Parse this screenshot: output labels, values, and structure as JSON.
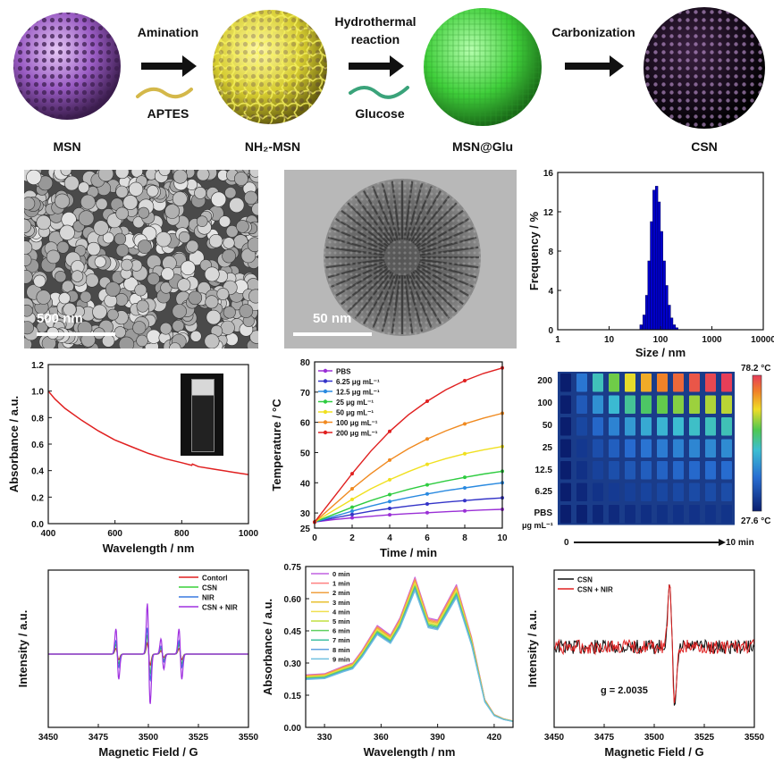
{
  "scheme": {
    "spheres": [
      {
        "label": "MSN",
        "color": "#b07ad6"
      },
      {
        "label": "NH₂-MSN",
        "color": "#e8e04a"
      },
      {
        "label": "MSN@Glu",
        "color": "#4fd14a"
      },
      {
        "label": "CSN",
        "color": "#1a0f1e"
      }
    ],
    "steps": [
      {
        "label": "Amination",
        "reagent": "APTES",
        "reagent_color": "#d4b84a"
      },
      {
        "label": "Hydrothermal reaction",
        "label_line1": "Hydrothermal",
        "label_line2": "reaction",
        "reagent": "Glucose",
        "reagent_color": "#3aa37a"
      },
      {
        "label": "Carbonization"
      }
    ]
  },
  "micrographs": {
    "sem": {
      "scale_label": "500 nm"
    },
    "tem": {
      "scale_label": "50 nm"
    }
  },
  "thermal_image": {
    "max_label": "78.2 °C",
    "min_label": "27.6 °C",
    "rows": [
      "200",
      "100",
      "50",
      "25",
      "12.5",
      "6.25",
      "PBS"
    ],
    "unit_label": "μg mL⁻¹",
    "time_start": "0",
    "time_end": "10 min"
  },
  "chart_data": [
    {
      "type": "bar",
      "xlabel": "Size / nm",
      "ylabel": "Frequency / %",
      "xscale": "log",
      "xlim": [
        1,
        10000
      ],
      "ylim": [
        0,
        16
      ],
      "xticks": [
        "1",
        "10",
        "100",
        "1000",
        "10000"
      ],
      "yticks": [
        "0",
        "4",
        "8",
        "12",
        "16"
      ],
      "color": "#0000cc",
      "x": [
        42,
        48,
        54,
        60,
        67,
        75,
        84,
        94,
        105,
        118,
        132,
        148,
        165,
        185,
        207
      ],
      "values": [
        0.5,
        1.5,
        3.5,
        7.0,
        11.0,
        14.2,
        14.6,
        13.0,
        10.0,
        7.0,
        4.5,
        2.5,
        1.2,
        0.5,
        0.2
      ]
    },
    {
      "type": "line",
      "xlabel": "Wavelength / nm",
      "ylabel": "Absorbance / a.u.",
      "xlim": [
        400,
        1000
      ],
      "ylim": [
        0.0,
        1.2
      ],
      "xticks": [
        "400",
        "600",
        "800",
        "1000"
      ],
      "yticks": [
        "0.0",
        "0.2",
        "0.4",
        "0.6",
        "0.8",
        "1.0",
        "1.2"
      ],
      "series": [
        {
          "color": "#e02020",
          "x": [
            400,
            420,
            450,
            500,
            550,
            600,
            650,
            700,
            750,
            800,
            830,
            832,
            850,
            900,
            950,
            1000
          ],
          "y": [
            1.0,
            0.94,
            0.87,
            0.78,
            0.7,
            0.63,
            0.58,
            0.53,
            0.49,
            0.46,
            0.44,
            0.45,
            0.43,
            0.41,
            0.39,
            0.37
          ]
        }
      ]
    },
    {
      "type": "line",
      "xlabel": "Time / min",
      "ylabel": "Temperature / °C",
      "xlim": [
        0,
        10
      ],
      "ylim": [
        25,
        80
      ],
      "xticks": [
        "0",
        "2",
        "4",
        "6",
        "8",
        "10"
      ],
      "yticks": [
        "25",
        "30",
        "40",
        "50",
        "60",
        "70",
        "80"
      ],
      "series": [
        {
          "name": "PBS",
          "color": "#9a2fd6",
          "marker": "square",
          "x": [
            0,
            1,
            2,
            3,
            4,
            5,
            6,
            7,
            8,
            9,
            10
          ],
          "y": [
            27,
            27.8,
            28.4,
            28.9,
            29.4,
            29.8,
            30.1,
            30.4,
            30.7,
            31.0,
            31.2
          ]
        },
        {
          "name": "6.25 μg mL⁻¹",
          "color": "#3434c8",
          "marker": "circle",
          "x": [
            0,
            1,
            2,
            3,
            4,
            5,
            6,
            7,
            8,
            9,
            10
          ],
          "y": [
            27,
            28.3,
            29.5,
            30.6,
            31.5,
            32.3,
            33.0,
            33.6,
            34.1,
            34.6,
            35.0
          ]
        },
        {
          "name": "12.5 μg mL⁻¹",
          "color": "#2a8ae0",
          "marker": "triangle",
          "x": [
            0,
            1,
            2,
            3,
            4,
            5,
            6,
            7,
            8,
            9,
            10
          ],
          "y": [
            27,
            28.8,
            30.6,
            32.3,
            33.8,
            35.1,
            36.3,
            37.4,
            38.3,
            39.2,
            40.0
          ]
        },
        {
          "name": "25 μg mL⁻¹",
          "color": "#2ecc40",
          "marker": "diamond",
          "x": [
            0,
            1,
            2,
            3,
            4,
            5,
            6,
            7,
            8,
            9,
            10
          ],
          "y": [
            27,
            29.5,
            31.9,
            34.1,
            36.1,
            37.8,
            39.3,
            40.6,
            41.8,
            42.9,
            43.8
          ]
        },
        {
          "name": "50 μg mL⁻¹",
          "color": "#f0e020",
          "marker": "triangle-left",
          "x": [
            0,
            1,
            2,
            3,
            4,
            5,
            6,
            7,
            8,
            9,
            10
          ],
          "y": [
            27,
            30.8,
            34.5,
            38.0,
            41.0,
            43.7,
            46.1,
            48.0,
            49.6,
            50.9,
            52.0
          ]
        },
        {
          "name": "100 μg mL⁻¹",
          "color": "#f08a20",
          "marker": "triangle-right",
          "x": [
            0,
            1,
            2,
            3,
            4,
            5,
            6,
            7,
            8,
            9,
            10
          ],
          "y": [
            27,
            32.5,
            38.0,
            43.0,
            47.5,
            51.3,
            54.5,
            57.2,
            59.5,
            61.4,
            63.0
          ]
        },
        {
          "name": "200 μg mL⁻¹",
          "color": "#e02020",
          "marker": "triangle-right",
          "x": [
            0,
            1,
            2,
            3,
            4,
            5,
            6,
            7,
            8,
            9,
            10
          ],
          "y": [
            27,
            35.0,
            43.0,
            50.5,
            57.0,
            62.5,
            67.0,
            70.8,
            73.8,
            76.2,
            78.0
          ]
        }
      ]
    },
    {
      "type": "line",
      "xlabel": "Magnetic Field / G",
      "ylabel": "Intensity / a.u.",
      "xlim": [
        3450,
        3550
      ],
      "xticks": [
        "3450",
        "3475",
        "3500",
        "3525",
        "3550"
      ],
      "legend_position": "top-right",
      "series": [
        {
          "name": "Contorl",
          "color": "#e02020",
          "amp": 0.22
        },
        {
          "name": "CSN",
          "color": "#38d038",
          "amp": 0.38
        },
        {
          "name": "NIR",
          "color": "#3a7ae0",
          "amp": 0.52
        },
        {
          "name": "CSN + NIR",
          "color": "#a030e0",
          "amp": 1.0
        }
      ],
      "lines": [
        {
          "center": 3484.5,
          "weight": 1
        },
        {
          "center": 3500.2,
          "weight": 2
        },
        {
          "center": 3507.0,
          "weight": 0.6
        },
        {
          "center": 3516.0,
          "weight": 1
        }
      ]
    },
    {
      "type": "line",
      "xlabel": "Wavelength / nm",
      "ylabel": "Absorbance / a.u.",
      "xlim": [
        320,
        430
      ],
      "ylim": [
        0.0,
        0.75
      ],
      "xticks": [
        "330",
        "360",
        "390",
        "420"
      ],
      "yticks": [
        "0.00",
        "0.15",
        "0.30",
        "0.45",
        "0.60",
        "0.75"
      ],
      "series": [
        {
          "name": "0 min",
          "color": "#c060e0",
          "scale": 1.0
        },
        {
          "name": "1 min",
          "color": "#ff8080",
          "scale": 0.99
        },
        {
          "name": "2 min",
          "color": "#f0a040",
          "scale": 0.98
        },
        {
          "name": "3 min",
          "color": "#e8c030",
          "scale": 0.97
        },
        {
          "name": "4 min",
          "color": "#f0e050",
          "scale": 0.96
        },
        {
          "name": "5 min",
          "color": "#c0e040",
          "scale": 0.95
        },
        {
          "name": "6 min",
          "color": "#60d060",
          "scale": 0.94
        },
        {
          "name": "7 min",
          "color": "#40c0a0",
          "scale": 0.93
        },
        {
          "name": "8 min",
          "color": "#60a0e0",
          "scale": 0.92
        },
        {
          "name": "9 min",
          "color": "#70c0e0",
          "scale": 0.91
        }
      ],
      "profile_x": [
        320,
        330,
        340,
        345,
        350,
        358,
        365,
        370,
        378,
        385,
        390,
        400,
        408,
        415,
        420,
        425,
        430
      ],
      "profile_y": [
        0.245,
        0.25,
        0.285,
        0.3,
        0.36,
        0.475,
        0.43,
        0.51,
        0.7,
        0.51,
        0.5,
        0.665,
        0.42,
        0.13,
        0.06,
        0.04,
        0.03
      ]
    },
    {
      "type": "line",
      "xlabel": "Magnetic Field / G",
      "ylabel": "Intensity / a.u.",
      "xlim": [
        3450,
        3550
      ],
      "xticks": [
        "3450",
        "3475",
        "3500",
        "3525",
        "3550"
      ],
      "annotation": "g = 2.0035",
      "legend_position": "top-left",
      "series": [
        {
          "name": "CSN",
          "color": "#111111"
        },
        {
          "name": "CSN + NIR",
          "color": "#e02020"
        }
      ],
      "center": 3509
    }
  ]
}
